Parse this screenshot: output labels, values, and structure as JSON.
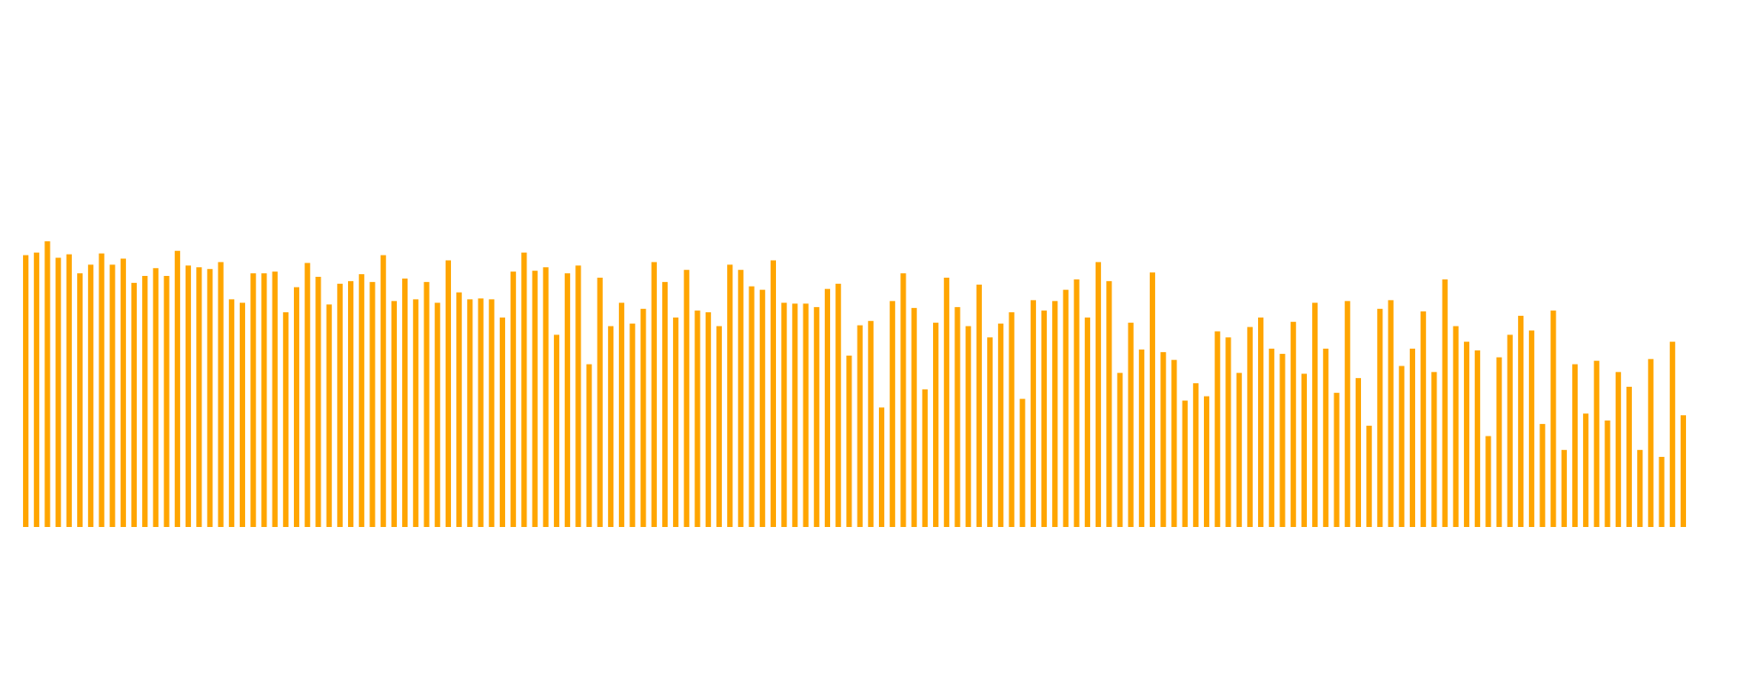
{
  "chart_data": {
    "type": "bar",
    "bar_color": "#ffa500",
    "ylim": [
      0,
      330
    ],
    "grid": false,
    "legend": "none",
    "values": [
      314,
      317,
      330,
      311,
      315,
      293,
      303,
      316,
      303,
      310,
      282,
      290,
      299,
      290,
      319,
      302,
      300,
      298,
      306,
      263,
      259,
      293,
      293,
      295,
      248,
      277,
      305,
      289,
      257,
      281,
      284,
      292,
      283,
      314,
      261,
      287,
      263,
      283,
      259,
      308,
      271,
      263,
      264,
      263,
      242,
      295,
      317,
      296,
      300,
      222,
      293,
      302,
      188,
      288,
      232,
      259,
      235,
      252,
      306,
      283,
      242,
      297,
      250,
      248,
      232,
      303,
      297,
      278,
      274,
      308,
      259,
      258,
      258,
      254,
      275,
      281,
      198,
      233,
      238,
      138,
      261,
      293,
      253,
      159,
      236,
      288,
      254,
      232,
      280,
      219,
      235,
      248,
      148,
      262,
      250,
      261,
      274,
      286,
      242,
      306,
      284,
      178,
      236,
      205,
      294,
      202,
      193,
      146,
      166,
      151,
      226,
      219,
      178,
      231,
      242,
      206,
      200,
      237,
      177,
      259,
      206,
      155,
      261,
      172,
      117,
      252,
      262,
      186,
      206,
      249,
      179,
      286,
      232,
      214,
      204,
      105,
      196,
      222,
      244,
      227,
      119,
      250,
      89,
      188,
      131,
      192,
      123,
      179,
      162,
      89,
      194,
      81,
      214,
      129
    ]
  }
}
